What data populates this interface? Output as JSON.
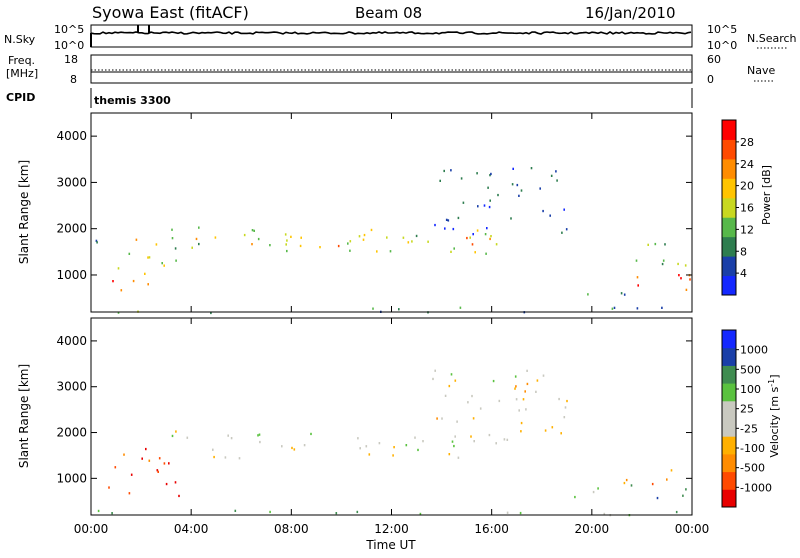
{
  "header": {
    "station": "Syowa East (fitACF)",
    "beam": "Beam 08",
    "date": "16/Jan/2010"
  },
  "top_panels": {
    "nsky_label": "N.Sky",
    "nsky_ticks": [
      "10^5",
      "10^0"
    ],
    "nsearch_label": "N.Search",
    "nsearch_ticks": [
      "10^5",
      "10^0"
    ],
    "freq_label": "Freq.",
    "freq_unit": "[MHz]",
    "freq_ticks": [
      "18",
      "8"
    ],
    "nave_label": "Nave",
    "nave_ticks": [
      "60",
      "0"
    ],
    "cpid_label": "CPID",
    "cpid_value": "themis 3300"
  },
  "colors": {
    "power": [
      "#1428ff",
      "#1a3fa8",
      "#2e7d4f",
      "#57b84a",
      "#c8d820",
      "#ffc400",
      "#ff8c00",
      "#ff4a00",
      "#ff0000"
    ],
    "velocity": [
      "#e80000",
      "#ff4a00",
      "#ff8c00",
      "#ffb000",
      "#c9c9c0",
      "#c9c9c0",
      "#5ac23f",
      "#3f8c50",
      "#1a3fa8",
      "#1428ff"
    ]
  },
  "chart_data": [
    {
      "type": "heatmap",
      "panel": "power",
      "ylabel": "Slant Range [km]",
      "yticks": [
        "1000",
        "2000",
        "3000",
        "4000"
      ],
      "ylim": [
        200,
        4500
      ],
      "xlim_hours": [
        0,
        24
      ],
      "colorbar_label": "Power [dB]",
      "colorbar_ticks": [
        "4",
        "8",
        "12",
        "16",
        "20",
        "24",
        "28"
      ],
      "colorbar_range": [
        0,
        32
      ],
      "regions": [
        {
          "t0": 3.2,
          "t1": 17.0,
          "r0": 1450,
          "r1": 2050,
          "level": 0.45
        },
        {
          "t0": 3.5,
          "t1": 16.5,
          "r0": 1650,
          "r1": 1850,
          "level": 0.7
        },
        {
          "t0": 0.3,
          "t1": 2.5,
          "r0": 600,
          "r1": 1000,
          "level": 0.8
        },
        {
          "t0": 1.0,
          "t1": 3.5,
          "r0": 900,
          "r1": 1800,
          "level": 0.5
        },
        {
          "t0": 0.0,
          "t1": 0.9,
          "r0": 1400,
          "r1": 1900,
          "level": 0.25
        },
        {
          "t0": 13.5,
          "t1": 19.0,
          "r0": 1900,
          "r1": 3400,
          "level": 0.15
        },
        {
          "t0": 18.7,
          "t1": 21.5,
          "r0": 600,
          "r1": 850,
          "level": 0.35
        },
        {
          "t0": 21.5,
          "t1": 24.0,
          "r0": 600,
          "r1": 1200,
          "level": 0.85
        },
        {
          "t0": 21.0,
          "t1": 24.0,
          "r0": 1200,
          "r1": 1800,
          "level": 0.4
        },
        {
          "t0": 0.0,
          "t1": 24.0,
          "r0": 200,
          "r1": 320,
          "level": 0.3
        }
      ]
    },
    {
      "type": "heatmap",
      "panel": "velocity",
      "ylabel": "Slant Range [km]",
      "yticks": [
        "1000",
        "2000",
        "3000",
        "4000"
      ],
      "ylim": [
        200,
        4500
      ],
      "xlim_hours": [
        0,
        24
      ],
      "xticks": [
        "00:00",
        "04:00",
        "08:00",
        "12:00",
        "16:00",
        "20:00",
        "00:00"
      ],
      "xlabel": "Time UT",
      "colorbar_label": "Velocity [m s^-1]",
      "colorbar_ticks": [
        "-1000",
        "-500",
        "-100",
        "-25",
        "25",
        "100",
        "500",
        "1000"
      ],
      "regions": [
        {
          "t0": 3.2,
          "t1": 17.0,
          "r0": 1450,
          "r1": 2050,
          "level": 0.5
        },
        {
          "t0": 0.3,
          "t1": 3.5,
          "r0": 600,
          "r1": 1700,
          "level": 0.15
        },
        {
          "t0": 13.5,
          "t1": 19.0,
          "r0": 1900,
          "r1": 3400,
          "level": 0.45
        },
        {
          "t0": 18.7,
          "t1": 21.5,
          "r0": 600,
          "r1": 850,
          "level": 0.65
        },
        {
          "t0": 21.5,
          "t1": 24.0,
          "r0": 550,
          "r1": 900,
          "level": 0.72
        },
        {
          "t0": 21.0,
          "t1": 24.0,
          "r0": 900,
          "r1": 1300,
          "level": 0.3
        },
        {
          "t0": 0.0,
          "t1": 24.0,
          "r0": 200,
          "r1": 320,
          "level": 0.62
        }
      ]
    }
  ]
}
